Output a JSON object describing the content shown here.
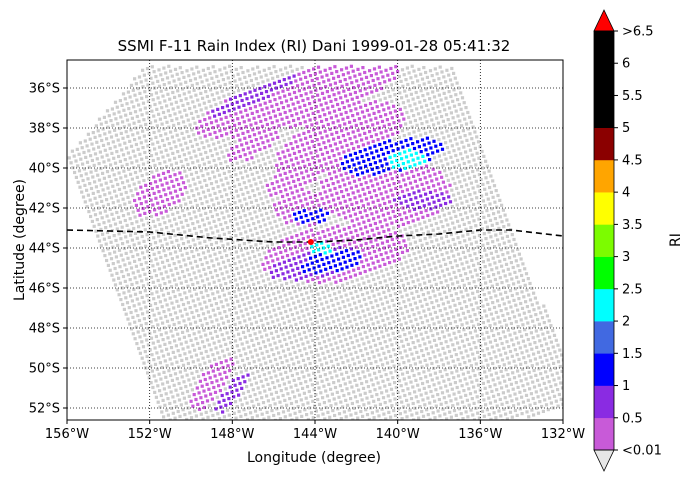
{
  "chart_data": {
    "type": "swath_map",
    "title": "SSMI F-11 Rain Index (RI) Dani 1999-01-28 05:41:32",
    "xlabel": "Longitude (degree)",
    "ylabel": "Latitude (degree)",
    "xlim": [
      -156,
      -132
    ],
    "ylim": [
      -52.6,
      -34.6
    ],
    "x_ticks": [
      -156,
      -152,
      -148,
      -144,
      -140,
      -136,
      -132
    ],
    "x_tick_labels": [
      "156°W",
      "152°W",
      "148°W",
      "144°W",
      "140°W",
      "136°W",
      "132°W"
    ],
    "y_ticks": [
      -36,
      -38,
      -40,
      -42,
      -44,
      -46,
      -48,
      -50,
      -52
    ],
    "y_tick_labels": [
      "36°S",
      "38°S",
      "40°S",
      "42°S",
      "44°S",
      "46°S",
      "48°S",
      "50°S",
      "52°S"
    ],
    "grid": true,
    "grid_style": "dotted",
    "colorbar": {
      "label": "RI",
      "tick_labels": [
        "<0.01",
        "0.5",
        "1",
        "1.5",
        "2",
        "2.5",
        "3",
        "3.5",
        "4",
        "4.5",
        "5",
        "5.5",
        "6",
        ">6.5"
      ],
      "colors": [
        "#c85ad8",
        "#8a2be2",
        "#0000ff",
        "#4169e1",
        "#00ffff",
        "#00ff00",
        "#7cfc00",
        "#ffff00",
        "#ffa500",
        "#8b0000",
        "#000000",
        "#000000",
        "#000000"
      ],
      "under_color": "#e6e6e6",
      "over_color": "#ff0000"
    },
    "no_rain_color": "#cccccc",
    "swath_corners": [
      [
        -152.2,
        -34.9
      ],
      [
        -137.4,
        -34.9
      ],
      [
        -131.1,
        -51.8
      ],
      [
        -136.6,
        -53.2
      ],
      [
        -151.1,
        -53.2
      ],
      [
        -156.1,
        -39.5
      ]
    ],
    "track": {
      "style": "dashed",
      "color": "#000000",
      "points": [
        [
          -156,
          -43.1
        ],
        [
          -152,
          -43.2
        ],
        [
          -149,
          -43.5
        ],
        [
          -146,
          -43.7
        ],
        [
          -144,
          -43.7
        ],
        [
          -142,
          -43.6
        ],
        [
          -140,
          -43.4
        ],
        [
          -138,
          -43.3
        ],
        [
          -136,
          -43.1
        ],
        [
          -134.5,
          -43.1
        ],
        [
          -132,
          -43.4
        ]
      ]
    },
    "storm_center": {
      "lon": -144.2,
      "lat": -43.7,
      "color": "#ff0000"
    },
    "rain_regions": [
      {
        "ri": 0.25,
        "center": [
          -144.8,
          -36.5
        ],
        "radius": [
          5.2,
          1.3
        ],
        "rotation": 18
      },
      {
        "ri": 0.25,
        "center": [
          -142.8,
          -38.6
        ],
        "radius": [
          3.4,
          1.4
        ],
        "rotation": 25
      },
      {
        "ri": 0.25,
        "center": [
          -140.6,
          -41.2
        ],
        "radius": [
          3.2,
          1.8
        ],
        "rotation": 0
      },
      {
        "ri": 0.25,
        "center": [
          -143.0,
          -44.3
        ],
        "radius": [
          3.6,
          1.4
        ],
        "rotation": 8
      },
      {
        "ri": 0.25,
        "center": [
          -151.5,
          -41.3
        ],
        "radius": [
          1.5,
          0.9
        ],
        "rotation": 35
      },
      {
        "ri": 0.25,
        "center": [
          -147.0,
          -38.8
        ],
        "radius": [
          1.4,
          0.6
        ],
        "rotation": 30
      },
      {
        "ri": 0.25,
        "center": [
          -144.6,
          -42.0
        ],
        "radius": [
          1.4,
          0.9
        ],
        "rotation": 0
      },
      {
        "ri": 0.25,
        "center": [
          -149.0,
          -50.8
        ],
        "radius": [
          1.6,
          0.6
        ],
        "rotation": 55
      },
      {
        "ri": 0.25,
        "center": [
          -145.0,
          -40.5
        ],
        "radius": [
          1.5,
          0.7
        ],
        "rotation": 30
      },
      {
        "ri": 0.75,
        "center": [
          -147.0,
          -36.4
        ],
        "radius": [
          2.4,
          0.35
        ],
        "rotation": 25
      },
      {
        "ri": 0.75,
        "center": [
          -144.0,
          -44.8
        ],
        "radius": [
          2.3,
          0.7
        ],
        "rotation": 12
      },
      {
        "ri": 0.75,
        "center": [
          -148.0,
          -51.2
        ],
        "radius": [
          1.3,
          0.35
        ],
        "rotation": 55
      },
      {
        "ri": 0.75,
        "center": [
          -138.8,
          -41.6
        ],
        "radius": [
          1.4,
          0.5
        ],
        "rotation": 0
      },
      {
        "ri": 1.25,
        "center": [
          -140.3,
          -39.4
        ],
        "radius": [
          2.6,
          0.8
        ],
        "rotation": 12
      },
      {
        "ri": 1.25,
        "center": [
          -144.2,
          -42.4
        ],
        "radius": [
          0.9,
          0.35
        ],
        "rotation": 0
      },
      {
        "ri": 1.25,
        "center": [
          -143.2,
          -44.7
        ],
        "radius": [
          1.6,
          0.5
        ],
        "rotation": 12
      },
      {
        "ri": 2.25,
        "center": [
          -139.6,
          -39.6
        ],
        "radius": [
          1.0,
          0.5
        ],
        "rotation": 0
      },
      {
        "ri": 2.25,
        "center": [
          -143.7,
          -44.0
        ],
        "radius": [
          0.6,
          0.3
        ],
        "rotation": 0
      }
    ]
  }
}
